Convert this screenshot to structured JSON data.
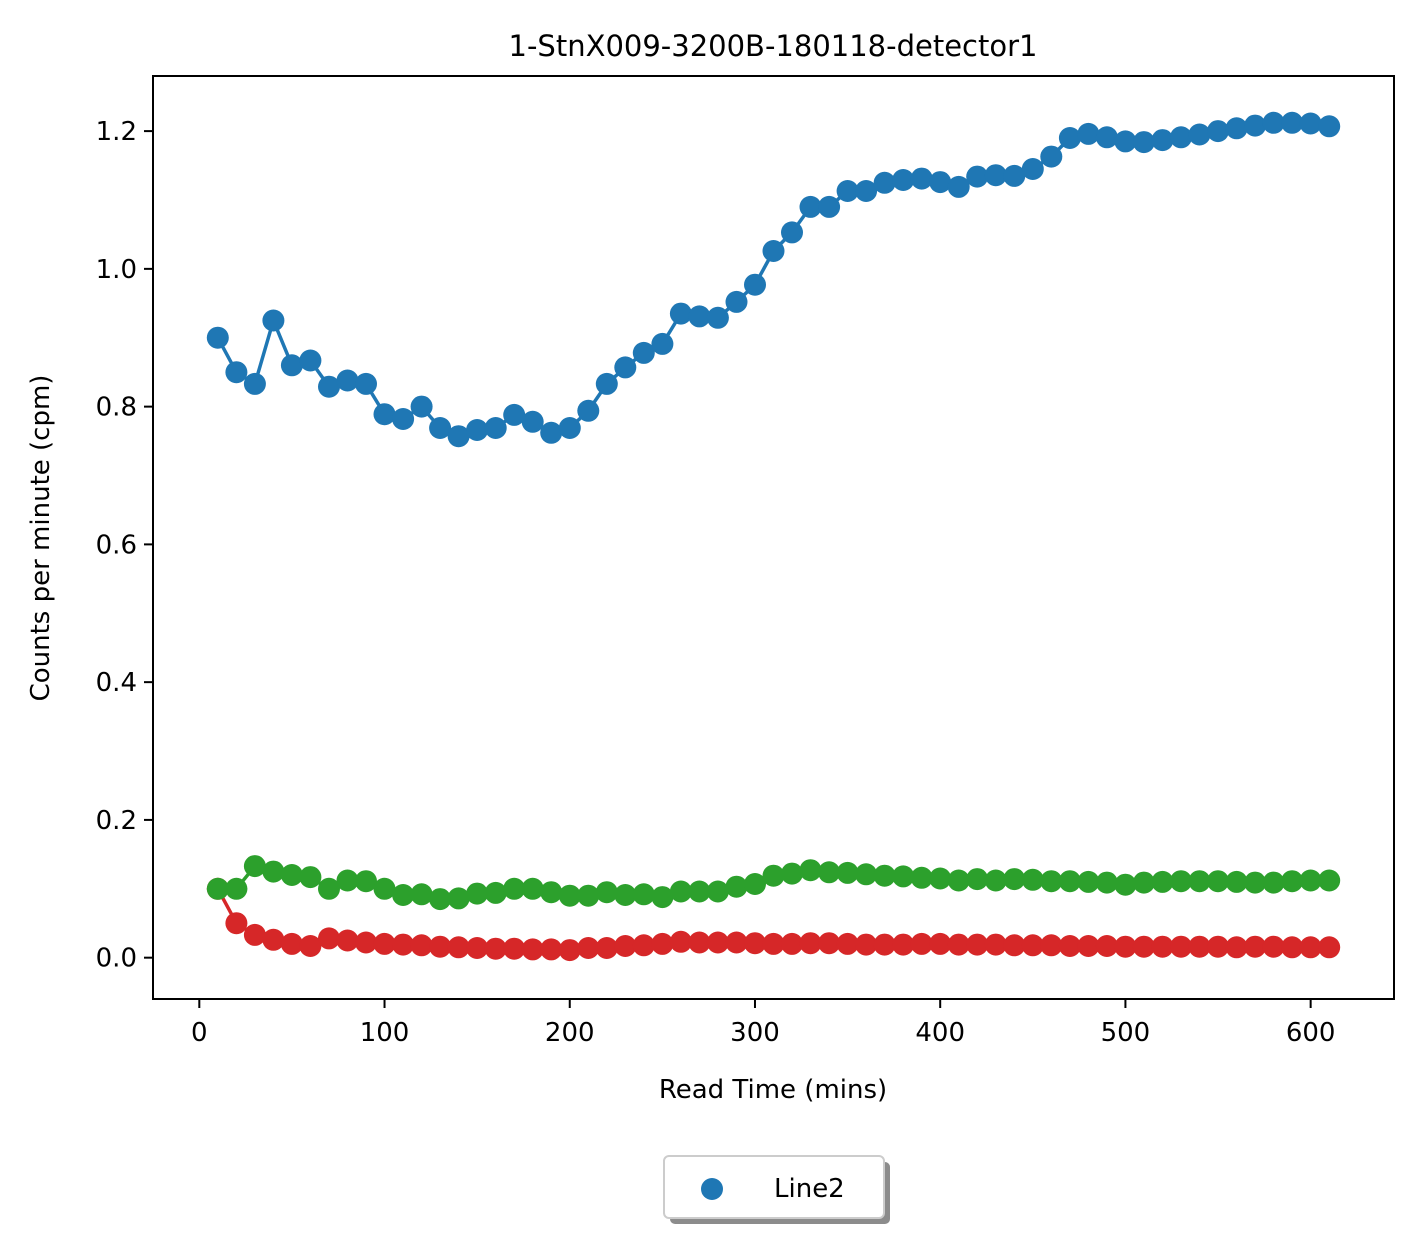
{
  "chart_data": {
    "type": "line",
    "title": "1-StnX009-3200B-180118-detector1",
    "xlabel": "Read Time (mins)",
    "ylabel": "Counts per minute (cpm)",
    "xlim": [
      -25,
      645
    ],
    "ylim": [
      -0.06,
      1.28
    ],
    "xticks": [
      0,
      100,
      200,
      300,
      400,
      500,
      600
    ],
    "yticks": [
      0.0,
      0.2,
      0.4,
      0.6,
      0.8,
      1.0,
      1.2
    ],
    "x": [
      10,
      20,
      30,
      40,
      50,
      60,
      70,
      80,
      90,
      100,
      110,
      120,
      130,
      140,
      150,
      160,
      170,
      180,
      190,
      200,
      210,
      220,
      230,
      240,
      250,
      260,
      270,
      280,
      290,
      300,
      310,
      320,
      330,
      340,
      350,
      360,
      370,
      380,
      390,
      400,
      410,
      420,
      430,
      440,
      450,
      460,
      470,
      480,
      490,
      500,
      510,
      520,
      530,
      540,
      550,
      560,
      570,
      580,
      590,
      600,
      610
    ],
    "series": [
      {
        "color": "#1f77b4",
        "values": [
          0.9,
          0.85,
          0.833,
          0.925,
          0.86,
          0.867,
          0.829,
          0.838,
          0.833,
          0.789,
          0.782,
          0.8,
          0.769,
          0.757,
          0.766,
          0.769,
          0.788,
          0.778,
          0.762,
          0.769,
          0.794,
          0.833,
          0.857,
          0.878,
          0.891,
          0.935,
          0.931,
          0.929,
          0.952,
          0.977,
          1.026,
          1.053,
          1.09,
          1.09,
          1.113,
          1.113,
          1.125,
          1.129,
          1.131,
          1.126,
          1.119,
          1.134,
          1.136,
          1.135,
          1.145,
          1.163,
          1.19,
          1.196,
          1.191,
          1.185,
          1.184,
          1.187,
          1.191,
          1.195,
          1.2,
          1.204,
          1.208,
          1.212,
          1.212,
          1.211,
          1.207
        ]
      },
      {
        "color": "#2ca02c",
        "values": [
          0.1,
          0.1,
          0.133,
          0.125,
          0.12,
          0.117,
          0.1,
          0.112,
          0.111,
          0.1,
          0.091,
          0.092,
          0.085,
          0.086,
          0.093,
          0.094,
          0.1,
          0.1,
          0.095,
          0.09,
          0.09,
          0.095,
          0.091,
          0.092,
          0.088,
          0.096,
          0.096,
          0.096,
          0.103,
          0.107,
          0.119,
          0.122,
          0.127,
          0.124,
          0.123,
          0.121,
          0.119,
          0.118,
          0.116,
          0.115,
          0.112,
          0.114,
          0.112,
          0.114,
          0.113,
          0.111,
          0.111,
          0.11,
          0.109,
          0.106,
          0.109,
          0.11,
          0.111,
          0.111,
          0.111,
          0.11,
          0.109,
          0.109,
          0.111,
          0.112,
          0.112
        ]
      },
      {
        "color": "#d62728",
        "values": [
          0.1,
          0.05,
          0.033,
          0.026,
          0.02,
          0.017,
          0.028,
          0.025,
          0.022,
          0.02,
          0.019,
          0.018,
          0.016,
          0.015,
          0.014,
          0.013,
          0.013,
          0.012,
          0.012,
          0.011,
          0.014,
          0.014,
          0.017,
          0.018,
          0.02,
          0.023,
          0.022,
          0.022,
          0.022,
          0.021,
          0.02,
          0.02,
          0.021,
          0.021,
          0.02,
          0.019,
          0.019,
          0.019,
          0.02,
          0.02,
          0.019,
          0.019,
          0.019,
          0.018,
          0.018,
          0.018,
          0.017,
          0.017,
          0.017,
          0.016,
          0.016,
          0.016,
          0.016,
          0.016,
          0.016,
          0.015,
          0.016,
          0.016,
          0.015,
          0.015,
          0.015
        ]
      }
    ],
    "legend": {
      "placement": "bottom-center",
      "entries": [
        {
          "label": "Line2",
          "color": "#1f77b4",
          "marker": "circle"
        }
      ]
    }
  }
}
